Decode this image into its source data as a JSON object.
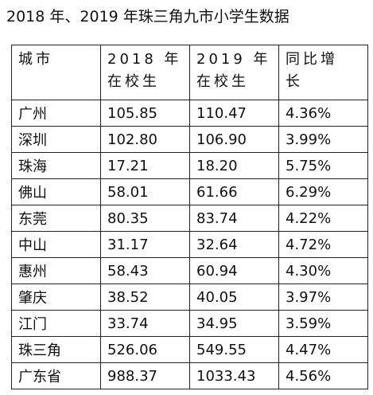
{
  "title": "2018 年、2019 年珠三角九市小学生数据",
  "table": {
    "header": [
      [
        "城市"
      ],
      [
        "2018 年",
        "在校生"
      ],
      [
        "2019 年",
        "在校生"
      ],
      [
        "同比增",
        "长"
      ]
    ],
    "rows": [
      [
        "广州",
        "105.85",
        "110.47",
        "4.36%"
      ],
      [
        "深圳",
        "102.80",
        "106.90",
        "3.99%"
      ],
      [
        "珠海",
        "17.21",
        "18.20",
        "5.75%"
      ],
      [
        "佛山",
        "58.01",
        "61.66",
        "6.29%"
      ],
      [
        "东莞",
        "80.35",
        "83.74",
        "4.22%"
      ],
      [
        "中山",
        "31.17",
        "32.64",
        "4.72%"
      ],
      [
        "惠州",
        "58.43",
        "60.94",
        "4.30%"
      ],
      [
        "肇庆",
        "38.52",
        "40.05",
        "3.97%"
      ],
      [
        "江门",
        "33.74",
        "34.95",
        "3.59%"
      ],
      [
        "珠三角",
        "526.06",
        "549.55",
        "4.47%"
      ],
      [
        "广东省",
        "988.37",
        "1033.43",
        "4.56%"
      ]
    ]
  }
}
